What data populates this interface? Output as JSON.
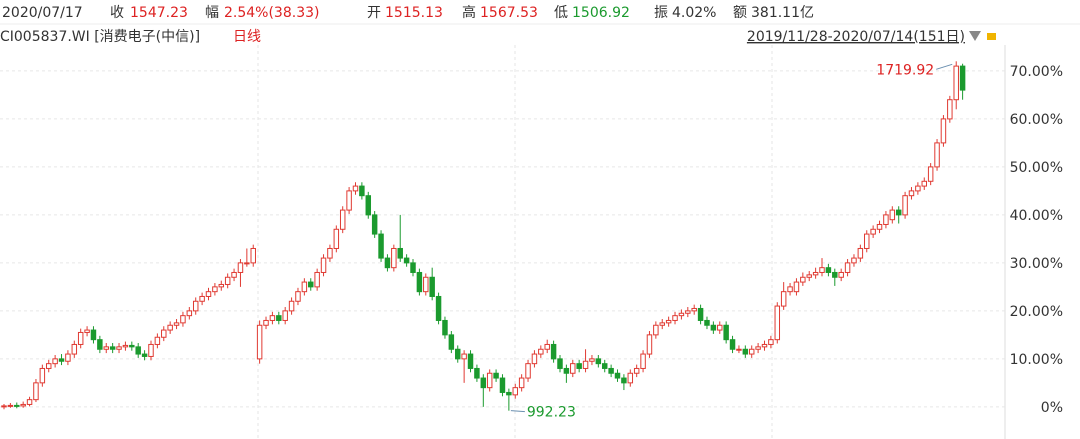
{
  "chart_data": {
    "type": "candlestick",
    "header": {
      "date": "2020/07/17",
      "close_label": "收",
      "close": "1547.23",
      "change_label": "幅",
      "change": "2.54%(38.33)",
      "open_label": "开",
      "open": "1515.13",
      "high_label": "高",
      "high": "1567.53",
      "low_label": "低",
      "low": "1506.92",
      "amp_label": "振",
      "amp": "4.02%",
      "amount_label": "额",
      "amount": "381.11亿"
    },
    "title": "CI005837.WI [消费电子(中信)]",
    "period": "日线",
    "range": "2019/11/28-2020/07/14(151日)",
    "max_annotation": "1719.92",
    "min_annotation": "992.23",
    "up_color": "#e03a32",
    "down_color": "#1b9a2e",
    "ylim": [
      -6.7,
      75.4
    ],
    "yticks": [
      {
        "value": 0,
        "label": "0%"
      },
      {
        "value": 10,
        "label": "10.00%"
      },
      {
        "value": 20,
        "label": "20.00%"
      },
      {
        "value": 30,
        "label": "30.00%"
      },
      {
        "value": 40,
        "label": "40.00%"
      },
      {
        "value": 50,
        "label": "50.00%"
      },
      {
        "value": 60,
        "label": "60.00%"
      },
      {
        "value": 70,
        "label": "70.00%"
      }
    ],
    "grid": true,
    "candles": [
      [
        0,
        0.6,
        -0.5,
        0.2
      ],
      [
        0.2,
        0.8,
        -0.2,
        0.3
      ],
      [
        0.3,
        0.9,
        -0.3,
        0.2
      ],
      [
        0.2,
        1.1,
        -0.2,
        0.5
      ],
      [
        0.5,
        2.1,
        0.1,
        1.5
      ],
      [
        1.5,
        5.8,
        1,
        5
      ],
      [
        5,
        8.8,
        4.2,
        8
      ],
      [
        8,
        9.8,
        7.2,
        9
      ],
      [
        9,
        10.8,
        8.2,
        10
      ],
      [
        10,
        11,
        8.7,
        9.5
      ],
      [
        9.5,
        11.8,
        8.7,
        11
      ],
      [
        11,
        13.8,
        10.2,
        13
      ],
      [
        13,
        16.3,
        12.2,
        15.5
      ],
      [
        15.5,
        16.8,
        14.7,
        16
      ],
      [
        16,
        16.8,
        13.2,
        14
      ],
      [
        14,
        14.8,
        11.2,
        12
      ],
      [
        12,
        13.3,
        11.2,
        12.5
      ],
      [
        12.5,
        13.3,
        11.2,
        12
      ],
      [
        12,
        13.3,
        11.2,
        12.5
      ],
      [
        12.5,
        13.6,
        11.7,
        12.8
      ],
      [
        12.8,
        13.6,
        11.7,
        12.5
      ],
      [
        12.5,
        13.3,
        10.2,
        11
      ],
      [
        11,
        11.8,
        9.7,
        10.5
      ],
      [
        10.5,
        13.8,
        9.7,
        13
      ],
      [
        13,
        15.3,
        12.2,
        14.5
      ],
      [
        14.5,
        16.8,
        13.7,
        16
      ],
      [
        16,
        17.8,
        15.2,
        17
      ],
      [
        17,
        18.3,
        16.2,
        17.5
      ],
      [
        17.5,
        19.8,
        16.7,
        19
      ],
      [
        19,
        20.8,
        18.2,
        20
      ],
      [
        20,
        22.8,
        19.2,
        22
      ],
      [
        22,
        23.8,
        21.2,
        23
      ],
      [
        23,
        24.8,
        22.2,
        24
      ],
      [
        24,
        25.8,
        23.2,
        25
      ],
      [
        25,
        26.3,
        24.2,
        25.5
      ],
      [
        25.5,
        27.8,
        24.7,
        27
      ],
      [
        27,
        28.8,
        26.2,
        28
      ],
      [
        28,
        30.8,
        25,
        30
      ],
      [
        30,
        33,
        29.2,
        30
      ],
      [
        30,
        33.8,
        29.2,
        33
      ],
      [
        10,
        18,
        9,
        17
      ],
      [
        17,
        18.8,
        16.2,
        18
      ],
      [
        18,
        19.8,
        17.2,
        19
      ],
      [
        19,
        19.8,
        17.2,
        18
      ],
      [
        18,
        20.8,
        17.2,
        20
      ],
      [
        20,
        22.8,
        19.2,
        22
      ],
      [
        22,
        24.8,
        21.2,
        24
      ],
      [
        24,
        26.8,
        23.2,
        26
      ],
      [
        26,
        26.8,
        24.2,
        25
      ],
      [
        25,
        28.8,
        24.2,
        28
      ],
      [
        28,
        31.8,
        27.2,
        31
      ],
      [
        31,
        33.8,
        30.2,
        33
      ],
      [
        33,
        37.8,
        32.2,
        37
      ],
      [
        37,
        41.8,
        36.2,
        41
      ],
      [
        41,
        45.8,
        40.2,
        45
      ],
      [
        45,
        46.8,
        44.2,
        46
      ],
      [
        46,
        46.8,
        43.2,
        44
      ],
      [
        44,
        44.8,
        39.2,
        40
      ],
      [
        40,
        40.8,
        35.2,
        36
      ],
      [
        36,
        36.8,
        30.2,
        31
      ],
      [
        31,
        31.8,
        28.2,
        29
      ],
      [
        29,
        33.8,
        28.2,
        33
      ],
      [
        33,
        40,
        30.2,
        31
      ],
      [
        31,
        31.8,
        29.2,
        30
      ],
      [
        30,
        30.8,
        27.2,
        28
      ],
      [
        28,
        28.8,
        23.2,
        24
      ],
      [
        24,
        27.8,
        23.2,
        27
      ],
      [
        27,
        29,
        22.2,
        23
      ],
      [
        23,
        23.8,
        17.2,
        18
      ],
      [
        18,
        18.8,
        14.2,
        15
      ],
      [
        15,
        15.8,
        11.2,
        12
      ],
      [
        12,
        12.8,
        9.2,
        10
      ],
      [
        10,
        11.8,
        5,
        11
      ],
      [
        11,
        11.8,
        7.2,
        8
      ],
      [
        8,
        8.8,
        5.2,
        6
      ],
      [
        6,
        6.8,
        0,
        4
      ],
      [
        4,
        7.8,
        3.2,
        7
      ],
      [
        7,
        7.8,
        5.2,
        6
      ],
      [
        6,
        6.8,
        2.2,
        3
      ],
      [
        3,
        3.8,
        -0.8,
        2.5
      ],
      [
        2.5,
        4.8,
        1.7,
        4
      ],
      [
        4,
        6.8,
        3.2,
        6
      ],
      [
        6,
        9.8,
        5.2,
        9
      ],
      [
        9,
        11.8,
        8.2,
        11
      ],
      [
        11,
        12.8,
        10.2,
        12
      ],
      [
        12,
        14,
        11.2,
        13
      ],
      [
        13,
        13.8,
        9.2,
        10
      ],
      [
        10,
        10.8,
        7.2,
        8
      ],
      [
        8,
        8.8,
        5,
        7
      ],
      [
        7,
        9.8,
        6.2,
        9
      ],
      [
        9,
        9.8,
        7.2,
        8
      ],
      [
        8,
        12,
        7.2,
        9.5
      ],
      [
        9.5,
        10.8,
        8.7,
        10
      ],
      [
        10,
        10.8,
        8.2,
        9
      ],
      [
        9,
        9.8,
        7.2,
        8
      ],
      [
        8,
        8.8,
        6.2,
        7
      ],
      [
        7,
        7.8,
        5.2,
        6
      ],
      [
        6,
        6.8,
        3.5,
        5
      ],
      [
        5,
        7.8,
        4.2,
        7
      ],
      [
        7,
        8.8,
        6.2,
        8
      ],
      [
        8,
        11.8,
        7.2,
        11
      ],
      [
        11,
        15.8,
        10.2,
        15
      ],
      [
        15,
        17.8,
        14.2,
        17
      ],
      [
        17,
        18.3,
        16.2,
        17.5
      ],
      [
        17.5,
        18.8,
        16.7,
        18
      ],
      [
        18,
        19.8,
        17.2,
        19
      ],
      [
        19,
        20.3,
        18.2,
        19.5
      ],
      [
        19.5,
        20.8,
        18.7,
        20
      ],
      [
        20,
        21.3,
        19.2,
        20.5
      ],
      [
        20.5,
        21.3,
        17.2,
        18
      ],
      [
        18,
        18.8,
        16.2,
        17
      ],
      [
        17,
        17.8,
        15.2,
        16
      ],
      [
        16,
        17.8,
        15.2,
        17
      ],
      [
        17,
        17.8,
        13.2,
        14
      ],
      [
        14,
        14.8,
        11.2,
        12
      ],
      [
        12,
        12.8,
        11.2,
        12
      ],
      [
        12,
        12.8,
        10.2,
        11
      ],
      [
        11,
        12.8,
        10.2,
        12
      ],
      [
        12,
        13.3,
        11.2,
        12.5
      ],
      [
        12.5,
        13.8,
        11.7,
        13
      ],
      [
        13,
        14.8,
        12.2,
        14
      ],
      [
        14,
        21.8,
        13.2,
        21
      ],
      [
        21,
        26,
        20.2,
        24
      ],
      [
        24,
        25.8,
        23.2,
        25
      ],
      [
        24,
        26.8,
        23.2,
        26
      ],
      [
        26,
        28,
        25.2,
        27
      ],
      [
        27,
        28.3,
        26.2,
        27.5
      ],
      [
        27.5,
        29,
        26.7,
        28
      ],
      [
        28,
        31,
        27.2,
        29
      ],
      [
        29,
        29.8,
        27.2,
        28
      ],
      [
        28,
        28.8,
        25.2,
        27
      ],
      [
        27,
        28.8,
        26.2,
        28
      ],
      [
        28,
        30.8,
        27.2,
        30
      ],
      [
        30,
        31.8,
        29.2,
        31
      ],
      [
        31,
        33.8,
        30.2,
        33
      ],
      [
        33,
        36.8,
        32.2,
        36
      ],
      [
        36,
        37.8,
        35.2,
        37
      ],
      [
        37,
        38.8,
        36.2,
        38
      ],
      [
        38,
        40.8,
        37.2,
        40
      ],
      [
        39,
        41.8,
        38.2,
        41
      ],
      [
        41,
        41.8,
        38.2,
        40
      ],
      [
        40,
        44.8,
        39.2,
        44
      ],
      [
        44,
        45.8,
        43.2,
        45
      ],
      [
        45,
        46.8,
        44.2,
        46
      ],
      [
        46,
        47.8,
        45.2,
        47
      ],
      [
        47,
        50.8,
        46.2,
        50
      ],
      [
        50,
        55.8,
        49.2,
        55
      ],
      [
        55,
        60.8,
        54.2,
        60
      ],
      [
        60,
        64.8,
        59.2,
        64
      ],
      [
        64,
        72,
        62,
        71
      ],
      [
        71,
        71.5,
        64,
        66
      ]
    ]
  }
}
